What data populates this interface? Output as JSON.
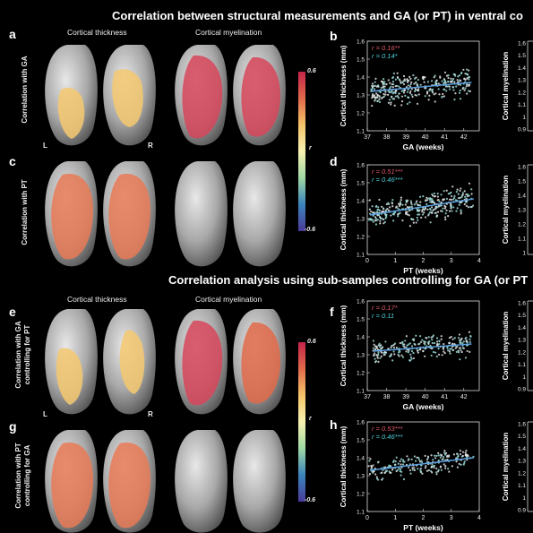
{
  "top_title": "Correlation between structural measurements and GA (or PT) in ventral co",
  "mid_title": "Correlation analysis using sub-samples controlling for GA (or PT",
  "col_titles": {
    "thickness": "Cortical thickness",
    "myelination": "Cortical myelination"
  },
  "panel_labels": {
    "a": "a",
    "b": "b",
    "c": "c",
    "d": "d",
    "e": "e",
    "f": "f",
    "g": "g",
    "h": "h"
  },
  "row_labels": {
    "a": "Correlation with GA",
    "c": "Correlation with PT",
    "e1": "Correlation with GA",
    "e2": "controlling for PT",
    "g1": "Correlation with PT",
    "g2": "controlling for GA"
  },
  "hemis": {
    "left": "L",
    "right": "R"
  },
  "colorbar": {
    "max": "0.6",
    "min": "-0.6",
    "var": "r",
    "colors": [
      "#c4244a",
      "#e06a4a",
      "#f5c46a",
      "#f7f2b0",
      "#9fd8a4",
      "#3a84bc",
      "#4a3a9a"
    ]
  },
  "chart_data": [
    {
      "id": "b",
      "type": "scatter",
      "xlabel": "GA (weeks)",
      "ylabel": "Cortical thickness (mm)",
      "xlim": [
        37,
        42.8
      ],
      "ylim": [
        1.1,
        1.6
      ],
      "xticks": [
        "37",
        "38",
        "39",
        "40",
        "41",
        "42"
      ],
      "xtick_vals": [
        37,
        38,
        39,
        40,
        41,
        42
      ],
      "yticks": [
        "1.1",
        "1.2",
        "1.3",
        "1.4",
        "1.5",
        "1.6"
      ],
      "stats": [
        {
          "text": "r = 0.16**",
          "color": "#e05a6a"
        },
        {
          "text": "r = 0.14*",
          "color": "#4fd0d8"
        }
      ],
      "fit": {
        "x": [
          37.2,
          42.4
        ],
        "y": [
          1.32,
          1.37
        ]
      },
      "x_range": [
        37.2,
        42.4
      ],
      "y_center": 1.345,
      "y_spread": 0.045,
      "n": 320
    },
    {
      "id": "d",
      "type": "scatter",
      "xlabel": "PT (weeks)",
      "ylabel": "Cortical thickness (mm)",
      "xlim": [
        0,
        4
      ],
      "ylim": [
        1.1,
        1.6
      ],
      "xticks": [
        "0",
        "1",
        "2",
        "3",
        "4"
      ],
      "xtick_vals": [
        0,
        1,
        2,
        3,
        4
      ],
      "yticks": [
        "1.1",
        "1.2",
        "1.3",
        "1.4",
        "1.5",
        "1.6"
      ],
      "stats": [
        {
          "text": "r = 0.51***",
          "color": "#e05a6a"
        },
        {
          "text": "r = 0.46***",
          "color": "#4fd0d8"
        }
      ],
      "fit": {
        "x": [
          0.1,
          3.8
        ],
        "y": [
          1.32,
          1.41
        ]
      },
      "x_range": [
        0.05,
        3.8
      ],
      "y_center": 1.33,
      "y_spread": 0.045,
      "n": 320
    },
    {
      "id": "f",
      "type": "scatter",
      "xlabel": "GA (weeks)",
      "ylabel": "Cortical thickness (mm)",
      "xlim": [
        37,
        42.8
      ],
      "ylim": [
        1.1,
        1.6
      ],
      "xticks": [
        "37",
        "38",
        "39",
        "40",
        "41",
        "42"
      ],
      "xtick_vals": [
        37,
        38,
        39,
        40,
        41,
        42
      ],
      "yticks": [
        "1.1",
        "1.2",
        "1.3",
        "1.4",
        "1.5",
        "1.6"
      ],
      "stats": [
        {
          "text": "r = 0.17*",
          "color": "#e05a6a"
        },
        {
          "text": "r = 0.11",
          "color": "#4fd0d8"
        }
      ],
      "fit": {
        "x": [
          37.3,
          42.4
        ],
        "y": [
          1.32,
          1.36
        ]
      },
      "x_range": [
        37.3,
        42.4
      ],
      "y_center": 1.34,
      "y_spread": 0.04,
      "n": 240
    },
    {
      "id": "h",
      "type": "scatter",
      "xlabel": "PT (weeks)",
      "ylabel": "Cortical thickness (mm)",
      "xlim": [
        0,
        4
      ],
      "ylim": [
        1.1,
        1.6
      ],
      "xticks": [
        "0",
        "1",
        "2",
        "3",
        "4"
      ],
      "xtick_vals": [
        0,
        1,
        2,
        3,
        4
      ],
      "yticks": [
        "1.1",
        "1.2",
        "1.3",
        "1.4",
        "1.5",
        "1.6"
      ],
      "stats": [
        {
          "text": "r = 0.53***",
          "color": "#e05a6a"
        },
        {
          "text": "r = 0.46***",
          "color": "#4fd0d8"
        }
      ],
      "fit": {
        "x": [
          0.1,
          3.8
        ],
        "y": [
          1.33,
          1.4
        ]
      },
      "x_range": [
        0.05,
        3.8
      ],
      "y_center": 1.33,
      "y_spread": 0.04,
      "n": 200
    }
  ],
  "partial_charts": [
    {
      "id": "b2",
      "ylabel": "Cortical myelination",
      "yticks": [
        "1.6",
        "1.5",
        "1.4",
        "1.3",
        "1.2",
        "1.1",
        "1",
        "0.9"
      ]
    },
    {
      "id": "d2",
      "ylabel": "Cortical myelination",
      "yticks": [
        "1.6",
        "1.5",
        "1.4",
        "1.3",
        "1.2",
        "1.1",
        "1"
      ]
    },
    {
      "id": "f2",
      "ylabel": "Cortical myelination",
      "yticks": [
        "1.6",
        "1.5",
        "1.4",
        "1.3",
        "1.2",
        "1.1",
        "1",
        "0.9"
      ]
    },
    {
      "id": "h2",
      "ylabel": "Cortical myelination",
      "yticks": [
        "1.6",
        "1.5",
        "1.4",
        "1.3",
        "1.2",
        "1.1",
        "1",
        "0.9"
      ]
    }
  ]
}
